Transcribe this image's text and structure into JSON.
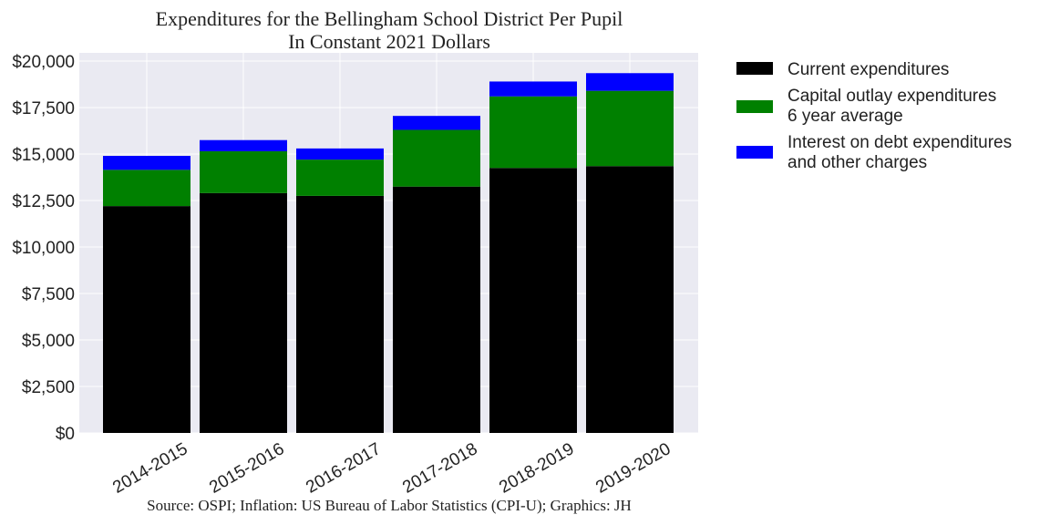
{
  "chart_data": {
    "type": "bar",
    "stacked": true,
    "title_lines": [
      "Expenditures for the Bellingham School District Per Pupil",
      "In Constant 2021 Dollars"
    ],
    "categories": [
      "2014-2015",
      "2015-2016",
      "2016-2017",
      "2017-2018",
      "2018-2019",
      "2019-2020"
    ],
    "series": [
      {
        "name": "Current expenditures",
        "color": "#000000",
        "values": [
          12200,
          12900,
          12750,
          13250,
          14250,
          14350
        ]
      },
      {
        "name_lines": [
          "Capital outlay expenditures",
          "6 year average"
        ],
        "color": "#008000",
        "values": [
          1950,
          2250,
          1950,
          3050,
          3850,
          4050
        ]
      },
      {
        "name_lines": [
          "Interest on debt expenditures",
          "and other charges"
        ],
        "color": "#0000ff",
        "values": [
          750,
          600,
          600,
          750,
          800,
          950
        ]
      }
    ],
    "ylim": [
      0,
      20000
    ],
    "yticks": [
      "$0",
      "$2,500",
      "$5,000",
      "$7,500",
      "$10,000",
      "$12,500",
      "$15,000",
      "$17,500",
      "$20,000"
    ],
    "ytick_values": [
      0,
      2500,
      5000,
      7500,
      10000,
      12500,
      15000,
      17500,
      20000
    ],
    "grid": true,
    "legend_position": "right",
    "source": "Source: OSPI; Inflation: US Bureau of Labor Statistics (CPI-U); Graphics: JH"
  }
}
